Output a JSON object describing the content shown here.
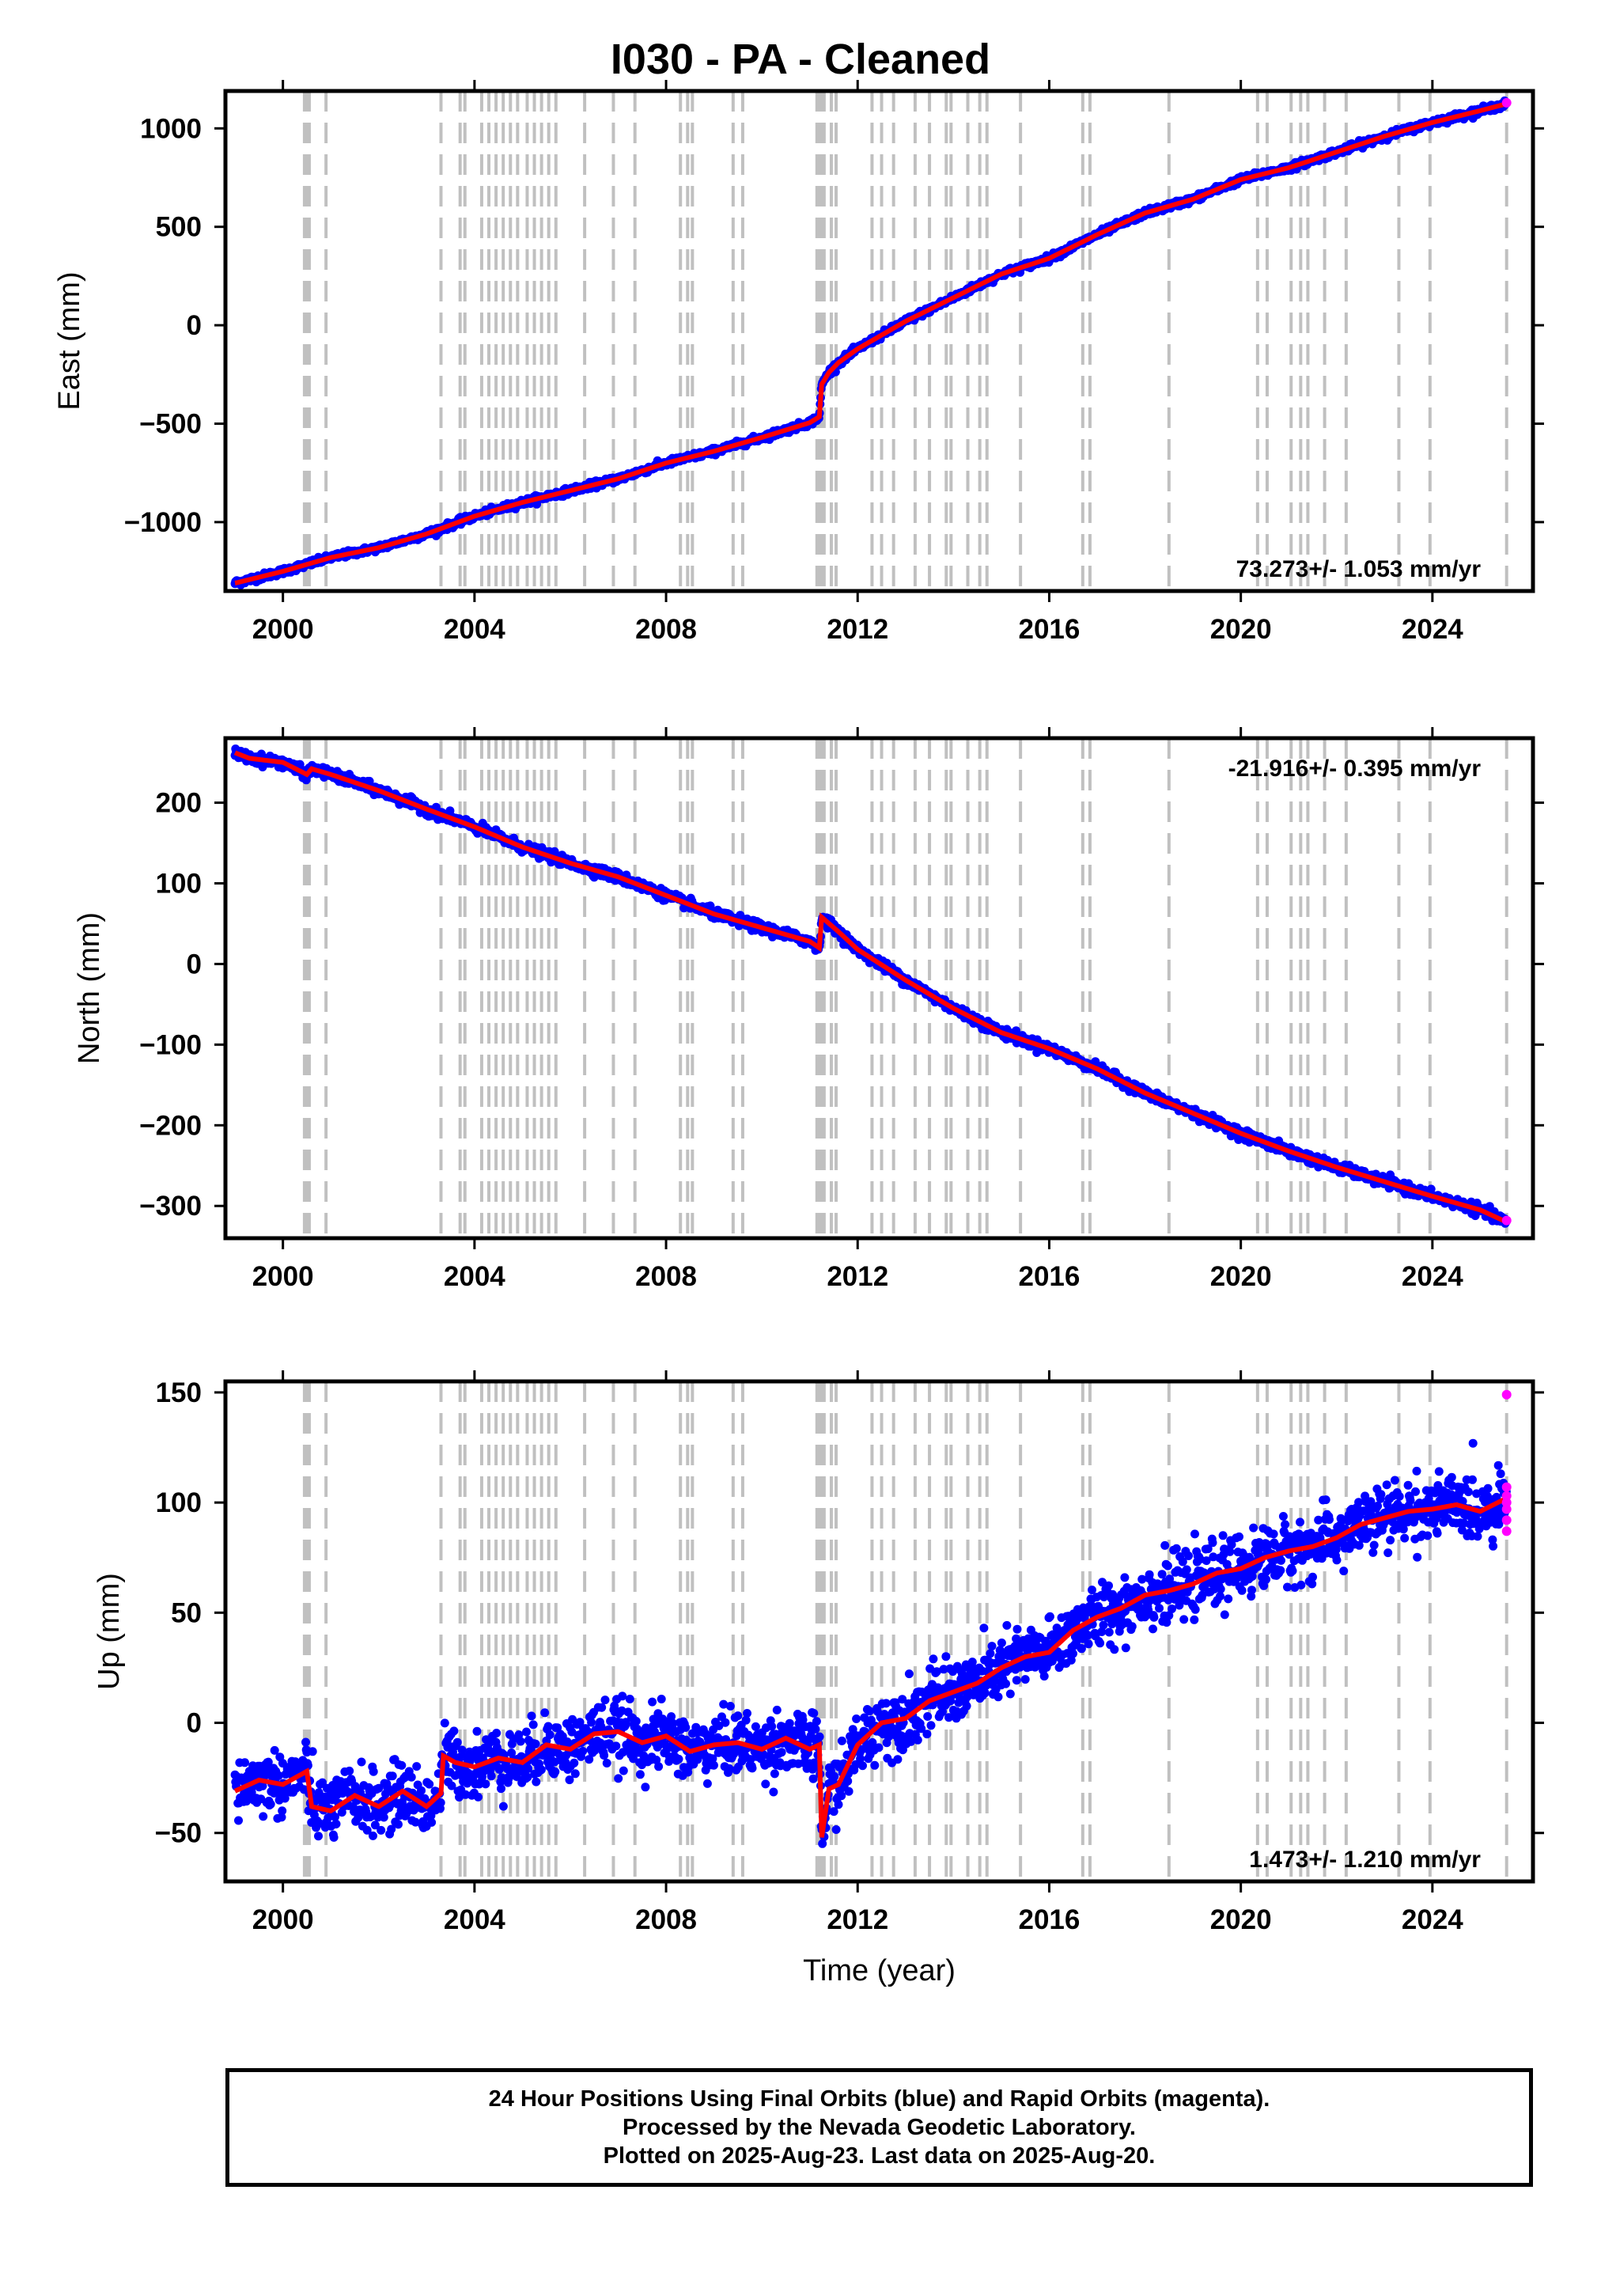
{
  "title": "I030  - PA - Cleaned",
  "footer": {
    "line1": "24 Hour Positions Using Final Orbits (blue) and Rapid Orbits (magenta).",
    "line2": "Processed by the Nevada Geodetic Laboratory.",
    "line3": "Plotted on 2025-Aug-23. Last data on 2025-Aug-20."
  },
  "colors": {
    "final_orbits": "#0000ff",
    "rapid_orbits": "#ff00ff",
    "model_fit": "#ff0000",
    "event_lines": "#c0c0c0"
  },
  "chart_data": [
    {
      "type": "scatter",
      "ylabel": "East (mm)",
      "xlabel": "",
      "xlim": [
        1998.8,
        2026.1
      ],
      "ylim": [
        -1350,
        1190
      ],
      "x_ticks": [
        2000,
        2004,
        2008,
        2012,
        2016,
        2020,
        2024
      ],
      "y_ticks": [
        -1000,
        -500,
        0,
        500,
        1000
      ],
      "rate_label": "73.273+/- 1.053 mm/yr",
      "rate_label_position": "bottom-right",
      "series": [
        {
          "name": "Final Orbits (blue)",
          "x": [
            1999.0,
            2000.0,
            2001.0,
            2002.0,
            2003.0,
            2004.0,
            2005.0,
            2006.0,
            2007.0,
            2008.0,
            2009.0,
            2010.0,
            2011.0,
            2011.2,
            2011.25,
            2011.4,
            2011.6,
            2012.0,
            2013.0,
            2014.0,
            2015.0,
            2016.0,
            2017.0,
            2018.0,
            2019.0,
            2020.0,
            2021.0,
            2022.0,
            2023.0,
            2024.0,
            2025.0,
            2025.55
          ],
          "y": [
            -1310,
            -1250,
            -1180,
            -1130,
            -1060,
            -970,
            -900,
            -840,
            -780,
            -700,
            -640,
            -570,
            -495,
            -465,
            -300,
            -240,
            -190,
            -120,
            20,
            140,
            260,
            340,
            460,
            570,
            640,
            740,
            800,
            880,
            960,
            1030,
            1090,
            1125
          ]
        },
        {
          "name": "Rapid Orbits (magenta)",
          "x": [
            2025.55
          ],
          "y": [
            1130
          ]
        }
      ],
      "fit": {
        "x": [
          1999.0,
          2000.0,
          2001.0,
          2002.0,
          2003.0,
          2004.0,
          2005.0,
          2006.0,
          2007.0,
          2008.0,
          2009.0,
          2010.0,
          2011.0,
          2011.2,
          2011.25,
          2011.4,
          2011.6,
          2012.0,
          2013.0,
          2014.0,
          2015.0,
          2016.0,
          2017.0,
          2018.0,
          2019.0,
          2020.0,
          2021.0,
          2022.0,
          2023.0,
          2024.0,
          2025.0,
          2025.55
        ],
        "y": [
          -1310,
          -1250,
          -1180,
          -1130,
          -1060,
          -970,
          -900,
          -840,
          -780,
          -700,
          -640,
          -570,
          -495,
          -465,
          -300,
          -240,
          -190,
          -120,
          20,
          140,
          260,
          340,
          460,
          570,
          640,
          740,
          800,
          880,
          960,
          1030,
          1090,
          1125
        ]
      },
      "scatter_spread_mm": 8
    },
    {
      "type": "scatter",
      "ylabel": "North (mm)",
      "xlabel": "",
      "xlim": [
        1998.8,
        2026.1
      ],
      "ylim": [
        -340,
        280
      ],
      "x_ticks": [
        2000,
        2004,
        2008,
        2012,
        2016,
        2020,
        2024
      ],
      "y_ticks": [
        -300,
        -200,
        -100,
        0,
        100,
        200
      ],
      "rate_label": "-21.916+/- 0.395 mm/yr",
      "rate_label_position": "top-right",
      "series": [
        {
          "name": "Final Orbits (blue)",
          "x": [
            1999.0,
            1999.3,
            2000.0,
            2000.5,
            2000.6,
            2001.0,
            2002.0,
            2003.0,
            2004.0,
            2005.0,
            2006.0,
            2007.0,
            2008.0,
            2009.0,
            2010.0,
            2011.0,
            2011.2,
            2011.25,
            2011.6,
            2012.0,
            2013.0,
            2014.0,
            2015.0,
            2016.0,
            2017.0,
            2018.0,
            2019.0,
            2020.0,
            2021.0,
            2022.0,
            2023.0,
            2024.0,
            2025.0,
            2025.55
          ],
          "y": [
            262,
            255,
            250,
            235,
            242,
            235,
            215,
            192,
            170,
            145,
            125,
            108,
            85,
            62,
            45,
            28,
            20,
            58,
            40,
            18,
            -20,
            -55,
            -85,
            -105,
            -130,
            -160,
            -185,
            -210,
            -232,
            -252,
            -270,
            -288,
            -305,
            -320
          ]
        },
        {
          "name": "Rapid Orbits (magenta)",
          "x": [
            2025.55
          ],
          "y": [
            -318
          ]
        }
      ],
      "fit": {
        "x": [
          1999.0,
          1999.3,
          2000.0,
          2000.5,
          2000.6,
          2001.0,
          2002.0,
          2003.0,
          2004.0,
          2005.0,
          2006.0,
          2007.0,
          2008.0,
          2009.0,
          2010.0,
          2011.0,
          2011.2,
          2011.25,
          2011.6,
          2012.0,
          2013.0,
          2014.0,
          2015.0,
          2016.0,
          2017.0,
          2018.0,
          2019.0,
          2020.0,
          2021.0,
          2022.0,
          2023.0,
          2024.0,
          2025.0,
          2025.55
        ],
        "y": [
          262,
          255,
          250,
          235,
          242,
          235,
          215,
          192,
          170,
          145,
          125,
          108,
          85,
          62,
          45,
          28,
          20,
          58,
          40,
          18,
          -20,
          -55,
          -85,
          -105,
          -130,
          -160,
          -185,
          -210,
          -232,
          -252,
          -270,
          -288,
          -305,
          -320
        ]
      },
      "scatter_spread_mm": 3
    },
    {
      "type": "scatter",
      "ylabel": "Up (mm)",
      "xlabel": "Time (year)",
      "xlim": [
        1998.8,
        2026.1
      ],
      "ylim": [
        -72,
        155
      ],
      "x_ticks": [
        2000,
        2004,
        2008,
        2012,
        2016,
        2020,
        2024
      ],
      "y_ticks": [
        -50,
        0,
        50,
        100,
        150
      ],
      "rate_label": "1.473+/- 1.210 mm/yr",
      "rate_label_position": "bottom-right",
      "series": [
        {
          "name": "Final Orbits (blue)",
          "x": [
            1999.0,
            1999.5,
            2000.0,
            2000.5,
            2000.6,
            2001.0,
            2001.5,
            2002.0,
            2002.5,
            2003.0,
            2003.3,
            2003.35,
            2003.6,
            2004.0,
            2004.5,
            2005.0,
            2005.5,
            2006.0,
            2006.5,
            2007.0,
            2007.5,
            2008.0,
            2008.5,
            2009.0,
            2009.5,
            2010.0,
            2010.5,
            2011.0,
            2011.2,
            2011.25,
            2011.4,
            2011.6,
            2012.0,
            2012.5,
            2013.0,
            2013.5,
            2014.0,
            2014.5,
            2015.0,
            2015.5,
            2016.0,
            2016.5,
            2017.0,
            2017.5,
            2018.0,
            2018.5,
            2019.0,
            2019.5,
            2020.0,
            2020.5,
            2021.0,
            2021.5,
            2022.0,
            2022.5,
            2023.0,
            2023.5,
            2024.0,
            2024.5,
            2025.0,
            2025.55
          ],
          "y": [
            -31,
            -26,
            -28,
            -22,
            -38,
            -40,
            -33,
            -38,
            -31,
            -38,
            -32,
            -15,
            -18,
            -20,
            -16,
            -18,
            -10,
            -12,
            -5,
            -4,
            -9,
            -6,
            -13,
            -10,
            -9,
            -12,
            -7,
            -12,
            -10,
            -52,
            -30,
            -28,
            -10,
            0,
            2,
            10,
            14,
            18,
            25,
            30,
            32,
            42,
            48,
            52,
            58,
            60,
            63,
            68,
            70,
            75,
            78,
            80,
            84,
            90,
            93,
            96,
            97,
            99,
            96,
            102
          ]
        },
        {
          "name": "Rapid Orbits (magenta)",
          "x": [
            2025.55,
            2025.55,
            2025.55,
            2025.55,
            2025.55,
            2025.55,
            2025.55
          ],
          "y": [
            149,
            107,
            103,
            100,
            97,
            92,
            87
          ]
        }
      ],
      "fit": {
        "x": [
          1999.0,
          1999.5,
          2000.0,
          2000.5,
          2000.6,
          2001.0,
          2001.5,
          2002.0,
          2002.5,
          2003.0,
          2003.3,
          2003.35,
          2003.6,
          2004.0,
          2004.5,
          2005.0,
          2005.5,
          2006.0,
          2006.5,
          2007.0,
          2007.5,
          2008.0,
          2008.5,
          2009.0,
          2009.5,
          2010.0,
          2010.5,
          2011.0,
          2011.2,
          2011.25,
          2011.4,
          2011.6,
          2012.0,
          2012.5,
          2013.0,
          2013.5,
          2014.0,
          2014.5,
          2015.0,
          2015.5,
          2016.0,
          2016.5,
          2017.0,
          2017.5,
          2018.0,
          2018.5,
          2019.0,
          2019.5,
          2020.0,
          2020.5,
          2021.0,
          2021.5,
          2022.0,
          2022.5,
          2023.0,
          2023.5,
          2024.0,
          2024.5,
          2025.0,
          2025.55
        ],
        "y": [
          -31,
          -26,
          -28,
          -22,
          -38,
          -40,
          -33,
          -38,
          -31,
          -38,
          -32,
          -15,
          -18,
          -20,
          -16,
          -18,
          -10,
          -12,
          -5,
          -4,
          -9,
          -6,
          -13,
          -10,
          -9,
          -12,
          -7,
          -12,
          -10,
          -52,
          -30,
          -28,
          -10,
          0,
          2,
          10,
          14,
          18,
          25,
          30,
          32,
          42,
          48,
          52,
          58,
          60,
          63,
          68,
          70,
          75,
          78,
          80,
          84,
          90,
          93,
          96,
          97,
          99,
          96,
          102
        ]
      },
      "scatter_spread_mm": 7
    }
  ],
  "event_lines_years": [
    2000.45,
    2000.5,
    2000.55,
    2000.9,
    2003.3,
    2003.7,
    2003.8,
    2004.15,
    2004.3,
    2004.45,
    2004.6,
    2004.75,
    2004.9,
    2005.1,
    2005.25,
    2005.4,
    2005.55,
    2005.7,
    2006.3,
    2006.9,
    2007.35,
    2008.3,
    2008.45,
    2008.55,
    2009.4,
    2009.6,
    2011.15,
    2011.2,
    2011.25,
    2011.3,
    2011.45,
    2011.55,
    2012.3,
    2012.5,
    2012.75,
    2013.2,
    2013.5,
    2013.85,
    2013.95,
    2014.3,
    2014.55,
    2014.7,
    2015.4,
    2016.7,
    2016.85,
    2018.5,
    2020.35,
    2020.55,
    2021.05,
    2021.25,
    2021.4,
    2021.75,
    2022.2,
    2023.3,
    2023.95,
    2025.55
  ]
}
